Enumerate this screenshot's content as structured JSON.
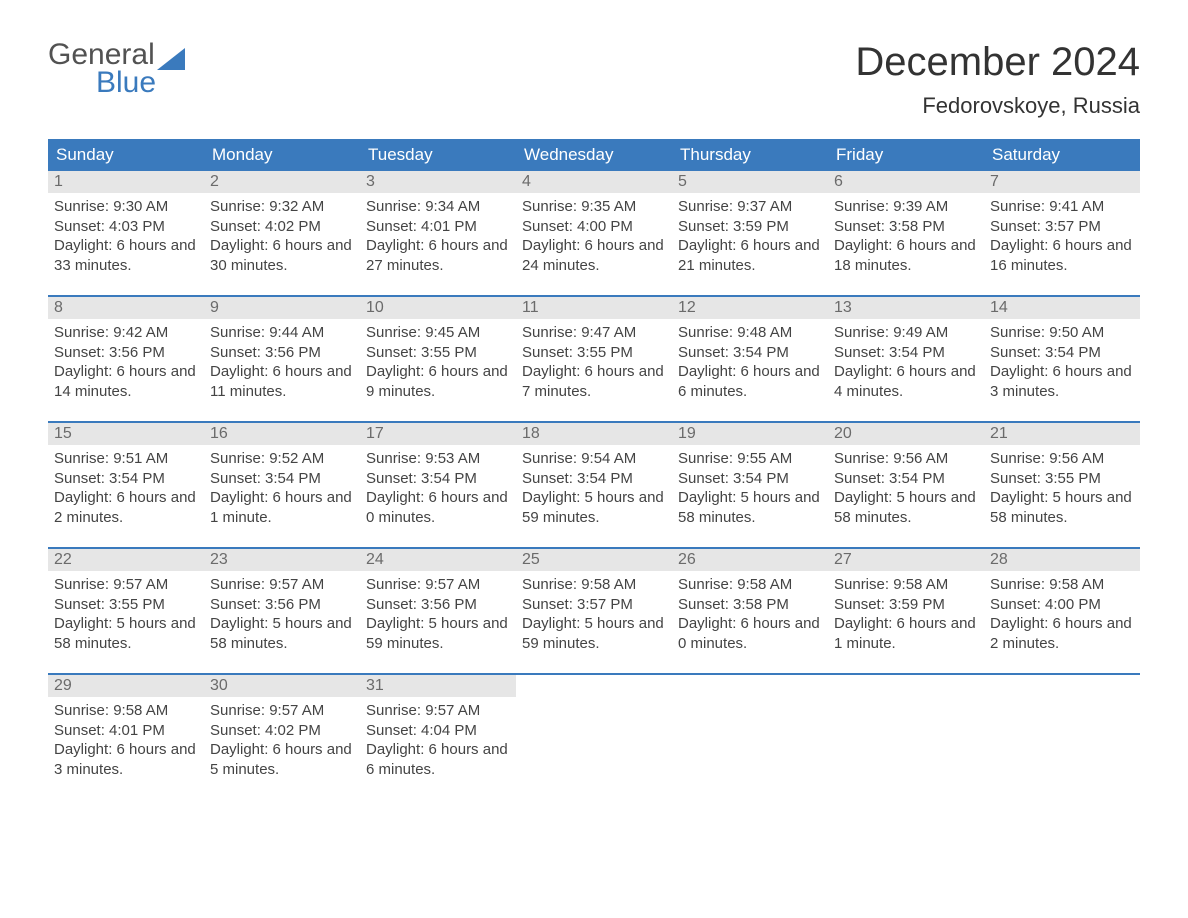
{
  "colors": {
    "header_bg": "#3a7abd",
    "header_text": "#ffffff",
    "daynum_bg": "#e6e6e6",
    "daynum_text": "#6b6b6b",
    "body_text": "#444444",
    "week_border": "#3a7abd",
    "logo_gray": "#525252",
    "logo_blue": "#3a7abd",
    "page_bg": "#ffffff"
  },
  "typography": {
    "title_fontsize": 40,
    "location_fontsize": 22,
    "header_fontsize": 17,
    "daynum_fontsize": 16,
    "body_fontsize": 15,
    "logo_fontsize": 30,
    "font_family": "Arial"
  },
  "logo": {
    "line1": "General",
    "line2": "Blue"
  },
  "title": "December 2024",
  "location": "Fedorovskoye, Russia",
  "day_headers": [
    "Sunday",
    "Monday",
    "Tuesday",
    "Wednesday",
    "Thursday",
    "Friday",
    "Saturday"
  ],
  "labels": {
    "sunrise": "Sunrise:",
    "sunset": "Sunset:",
    "daylight": "Daylight:"
  },
  "weeks": [
    [
      {
        "n": "1",
        "sr": "9:30 AM",
        "ss": "4:03 PM",
        "dl": "6 hours and 33 minutes."
      },
      {
        "n": "2",
        "sr": "9:32 AM",
        "ss": "4:02 PM",
        "dl": "6 hours and 30 minutes."
      },
      {
        "n": "3",
        "sr": "9:34 AM",
        "ss": "4:01 PM",
        "dl": "6 hours and 27 minutes."
      },
      {
        "n": "4",
        "sr": "9:35 AM",
        "ss": "4:00 PM",
        "dl": "6 hours and 24 minutes."
      },
      {
        "n": "5",
        "sr": "9:37 AM",
        "ss": "3:59 PM",
        "dl": "6 hours and 21 minutes."
      },
      {
        "n": "6",
        "sr": "9:39 AM",
        "ss": "3:58 PM",
        "dl": "6 hours and 18 minutes."
      },
      {
        "n": "7",
        "sr": "9:41 AM",
        "ss": "3:57 PM",
        "dl": "6 hours and 16 minutes."
      }
    ],
    [
      {
        "n": "8",
        "sr": "9:42 AM",
        "ss": "3:56 PM",
        "dl": "6 hours and 14 minutes."
      },
      {
        "n": "9",
        "sr": "9:44 AM",
        "ss": "3:56 PM",
        "dl": "6 hours and 11 minutes."
      },
      {
        "n": "10",
        "sr": "9:45 AM",
        "ss": "3:55 PM",
        "dl": "6 hours and 9 minutes."
      },
      {
        "n": "11",
        "sr": "9:47 AM",
        "ss": "3:55 PM",
        "dl": "6 hours and 7 minutes."
      },
      {
        "n": "12",
        "sr": "9:48 AM",
        "ss": "3:54 PM",
        "dl": "6 hours and 6 minutes."
      },
      {
        "n": "13",
        "sr": "9:49 AM",
        "ss": "3:54 PM",
        "dl": "6 hours and 4 minutes."
      },
      {
        "n": "14",
        "sr": "9:50 AM",
        "ss": "3:54 PM",
        "dl": "6 hours and 3 minutes."
      }
    ],
    [
      {
        "n": "15",
        "sr": "9:51 AM",
        "ss": "3:54 PM",
        "dl": "6 hours and 2 minutes."
      },
      {
        "n": "16",
        "sr": "9:52 AM",
        "ss": "3:54 PM",
        "dl": "6 hours and 1 minute."
      },
      {
        "n": "17",
        "sr": "9:53 AM",
        "ss": "3:54 PM",
        "dl": "6 hours and 0 minutes."
      },
      {
        "n": "18",
        "sr": "9:54 AM",
        "ss": "3:54 PM",
        "dl": "5 hours and 59 minutes."
      },
      {
        "n": "19",
        "sr": "9:55 AM",
        "ss": "3:54 PM",
        "dl": "5 hours and 58 minutes."
      },
      {
        "n": "20",
        "sr": "9:56 AM",
        "ss": "3:54 PM",
        "dl": "5 hours and 58 minutes."
      },
      {
        "n": "21",
        "sr": "9:56 AM",
        "ss": "3:55 PM",
        "dl": "5 hours and 58 minutes."
      }
    ],
    [
      {
        "n": "22",
        "sr": "9:57 AM",
        "ss": "3:55 PM",
        "dl": "5 hours and 58 minutes."
      },
      {
        "n": "23",
        "sr": "9:57 AM",
        "ss": "3:56 PM",
        "dl": "5 hours and 58 minutes."
      },
      {
        "n": "24",
        "sr": "9:57 AM",
        "ss": "3:56 PM",
        "dl": "5 hours and 59 minutes."
      },
      {
        "n": "25",
        "sr": "9:58 AM",
        "ss": "3:57 PM",
        "dl": "5 hours and 59 minutes."
      },
      {
        "n": "26",
        "sr": "9:58 AM",
        "ss": "3:58 PM",
        "dl": "6 hours and 0 minutes."
      },
      {
        "n": "27",
        "sr": "9:58 AM",
        "ss": "3:59 PM",
        "dl": "6 hours and 1 minute."
      },
      {
        "n": "28",
        "sr": "9:58 AM",
        "ss": "4:00 PM",
        "dl": "6 hours and 2 minutes."
      }
    ],
    [
      {
        "n": "29",
        "sr": "9:58 AM",
        "ss": "4:01 PM",
        "dl": "6 hours and 3 minutes."
      },
      {
        "n": "30",
        "sr": "9:57 AM",
        "ss": "4:02 PM",
        "dl": "6 hours and 5 minutes."
      },
      {
        "n": "31",
        "sr": "9:57 AM",
        "ss": "4:04 PM",
        "dl": "6 hours and 6 minutes."
      },
      null,
      null,
      null,
      null
    ]
  ]
}
